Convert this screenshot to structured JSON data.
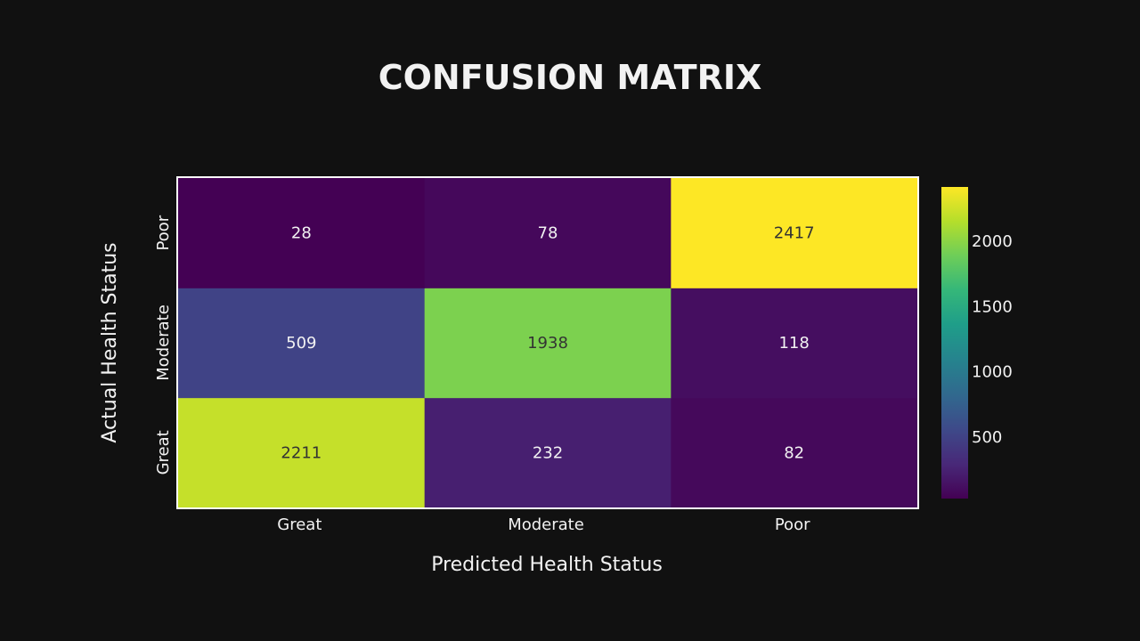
{
  "chart_data": {
    "type": "heatmap",
    "title": "CONFUSION MATRIX",
    "xlabel": "Predicted Health Status",
    "ylabel": "Actual Health Status",
    "x_categories": [
      "Great",
      "Moderate",
      "Poor"
    ],
    "y_categories": [
      "Great",
      "Moderate",
      "Poor"
    ],
    "values": [
      [
        2211,
        232,
        82
      ],
      [
        509,
        1938,
        118
      ],
      [
        28,
        78,
        2417
      ]
    ],
    "colorscale": "viridis",
    "zlim": [
      28,
      2417
    ],
    "colorbar": {
      "tick_values": [
        500,
        1000,
        1500,
        2000
      ],
      "tick_labels": [
        "500",
        "1000",
        "1500",
        "2000"
      ]
    },
    "grid": false
  },
  "colors": {
    "background": "#111111",
    "text": "#f2f2f2",
    "frame": "#ffffff",
    "dark_cell_text": "#333333"
  }
}
